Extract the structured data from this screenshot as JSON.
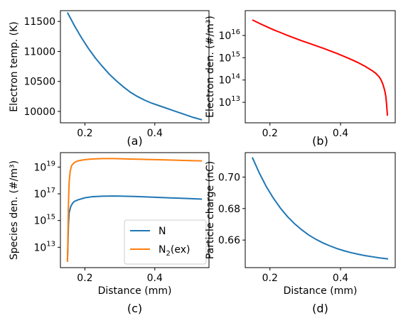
{
  "chart_data": [
    {
      "id": "a",
      "type": "line",
      "panel_label": "(a)",
      "xlabel": "",
      "ylabel": "Electron temp. (K)",
      "xlim": [
        0.13,
        0.555
      ],
      "ylim": [
        9810,
        11680
      ],
      "yscale": "linear",
      "xticks": [
        0.2,
        0.4
      ],
      "xtick_labels": [
        "0.2",
        "0.4"
      ],
      "yticks": [
        10000,
        10500,
        11000,
        11500
      ],
      "ytick_labels": [
        "10000",
        "10500",
        "11000",
        "11500"
      ],
      "series": [
        {
          "color": "#1f77b4",
          "x": [
            0.15,
            0.17,
            0.19,
            0.21,
            0.23,
            0.25,
            0.27,
            0.29,
            0.31,
            0.33,
            0.35,
            0.37,
            0.39,
            0.41,
            0.43,
            0.45,
            0.47,
            0.49,
            0.51,
            0.535
          ],
          "y": [
            11650,
            11430,
            11230,
            11050,
            10890,
            10750,
            10620,
            10510,
            10410,
            10320,
            10250,
            10190,
            10140,
            10100,
            10060,
            10020,
            9980,
            9940,
            9900,
            9860
          ]
        }
      ]
    },
    {
      "id": "b",
      "type": "line",
      "panel_label": "(b)",
      "xlabel": "",
      "ylabel": "Electron den. (#/m³)",
      "xlim": [
        0.13,
        0.555
      ],
      "ylim": [
        1200000000000.0,
        1.3e+17
      ],
      "yscale": "log",
      "xticks": [
        0.2,
        0.4
      ],
      "xtick_labels": [
        "0.2",
        "0.4"
      ],
      "yticks": [
        10000000000000.0,
        100000000000000.0,
        1000000000000000.0,
        1e+16
      ],
      "ytick_base": [
        "10",
        "10",
        "10",
        "10"
      ],
      "ytick_exp": [
        "13",
        "14",
        "15",
        "16"
      ],
      "series": [
        {
          "color": "#ff0000",
          "x": [
            0.15,
            0.17,
            0.19,
            0.21,
            0.23,
            0.25,
            0.27,
            0.29,
            0.31,
            0.33,
            0.35,
            0.37,
            0.39,
            0.41,
            0.43,
            0.45,
            0.47,
            0.49,
            0.5,
            0.51,
            0.515,
            0.52,
            0.525,
            0.528,
            0.53,
            0.532,
            0.533
          ],
          "y": [
            5e+16,
            3.5e+16,
            2.5e+16,
            1.8e+16,
            1.35e+16,
            1e+16,
            7600000000000000.0,
            5800000000000000.0,
            4500000000000000.0,
            3500000000000000.0,
            2700000000000000.0,
            2050000000000000.0,
            1550000000000000.0,
            1150000000000000.0,
            840000000000000.0,
            600000000000000.0,
            410000000000000.0,
            260000000000000.0,
            200000000000000.0,
            135000000000000.0,
            100000000000000.0,
            65000000000000.0,
            35000000000000.0,
            20000000000000.0,
            10000000000000.0,
            4000000000000.0,
            2500000000000.0
          ]
        }
      ]
    },
    {
      "id": "c",
      "type": "line",
      "panel_label": "(c)",
      "xlabel": "Distance (mm)",
      "ylabel": "Species den. (#/m³)",
      "xlim": [
        0.13,
        0.555
      ],
      "ylim": [
        300000000000.0,
        1.2e+20
      ],
      "yscale": "log",
      "xticks": [
        0.2,
        0.4
      ],
      "xtick_labels": [
        "0.2",
        "0.4"
      ],
      "yticks": [
        10000000000000.0,
        1000000000000000.0,
        1e+17,
        1e+19
      ],
      "ytick_base": [
        "10",
        "10",
        "10",
        "10"
      ],
      "ytick_exp": [
        "13",
        "15",
        "17",
        "19"
      ],
      "legend": {
        "placement": "lower-right",
        "entries": [
          {
            "label": "N",
            "sub": "",
            "tail": ""
          },
          {
            "label": "N",
            "sub": "2",
            "tail": "(ex)"
          }
        ]
      },
      "series": [
        {
          "color": "#1f77b4",
          "x": [
            0.15,
            0.151,
            0.152,
            0.153,
            0.155,
            0.16,
            0.165,
            0.17,
            0.18,
            0.2,
            0.22,
            0.25,
            0.28,
            0.3,
            0.35,
            0.4,
            0.45,
            0.5,
            0.535
          ],
          "y": [
            1000000000000.0,
            5000000000000.0,
            50000000000000.0,
            500000000000000.0,
            4000000000000000.0,
            1.2e+16,
            2e+16,
            2.7e+16,
            3.5e+16,
            5e+16,
            6e+16,
            6.6e+16,
            6.8e+16,
            6.7e+16,
            6.2e+16,
            5.5e+16,
            4.9e+16,
            4.4e+16,
            4e+16
          ]
        },
        {
          "color": "#ff7f0e",
          "x": [
            0.15,
            0.151,
            0.152,
            0.153,
            0.155,
            0.158,
            0.162,
            0.17,
            0.18,
            0.2,
            0.22,
            0.25,
            0.28,
            0.3,
            0.35,
            0.4,
            0.45,
            0.5,
            0.535
          ],
          "y": [
            800000000000.0,
            10000000000000.0,
            500000000000000.0,
            2e+16,
            8e+17,
            5e+18,
            1.3e+19,
            2.2e+19,
            2.9e+19,
            3.6e+19,
            4e+19,
            4.3e+19,
            4.3e+19,
            4.2e+19,
            3.9e+19,
            3.6e+19,
            3.3e+19,
            3.05e+19,
            2.9e+19
          ]
        }
      ]
    },
    {
      "id": "d",
      "type": "line",
      "panel_label": "(d)",
      "xlabel": "Distance (mm)",
      "ylabel": "Particle charge (nC)",
      "xlim": [
        0.13,
        0.555
      ],
      "ylim": [
        0.6425,
        0.7155
      ],
      "yscale": "linear",
      "xticks": [
        0.2,
        0.4
      ],
      "xtick_labels": [
        "0.2",
        "0.4"
      ],
      "yticks": [
        0.66,
        0.68,
        0.7
      ],
      "ytick_labels": [
        "0.66",
        "0.68",
        "0.70"
      ],
      "series": [
        {
          "color": "#1f77b4",
          "x": [
            0.15,
            0.17,
            0.19,
            0.21,
            0.23,
            0.25,
            0.27,
            0.29,
            0.31,
            0.33,
            0.35,
            0.37,
            0.39,
            0.41,
            0.43,
            0.45,
            0.47,
            0.49,
            0.51,
            0.535
          ],
          "y": [
            0.7125,
            0.7025,
            0.6938,
            0.6865,
            0.6802,
            0.6748,
            0.6703,
            0.6665,
            0.6632,
            0.6605,
            0.6582,
            0.6563,
            0.6546,
            0.6532,
            0.652,
            0.651,
            0.6501,
            0.6494,
            0.6487,
            0.648
          ]
        }
      ]
    }
  ]
}
